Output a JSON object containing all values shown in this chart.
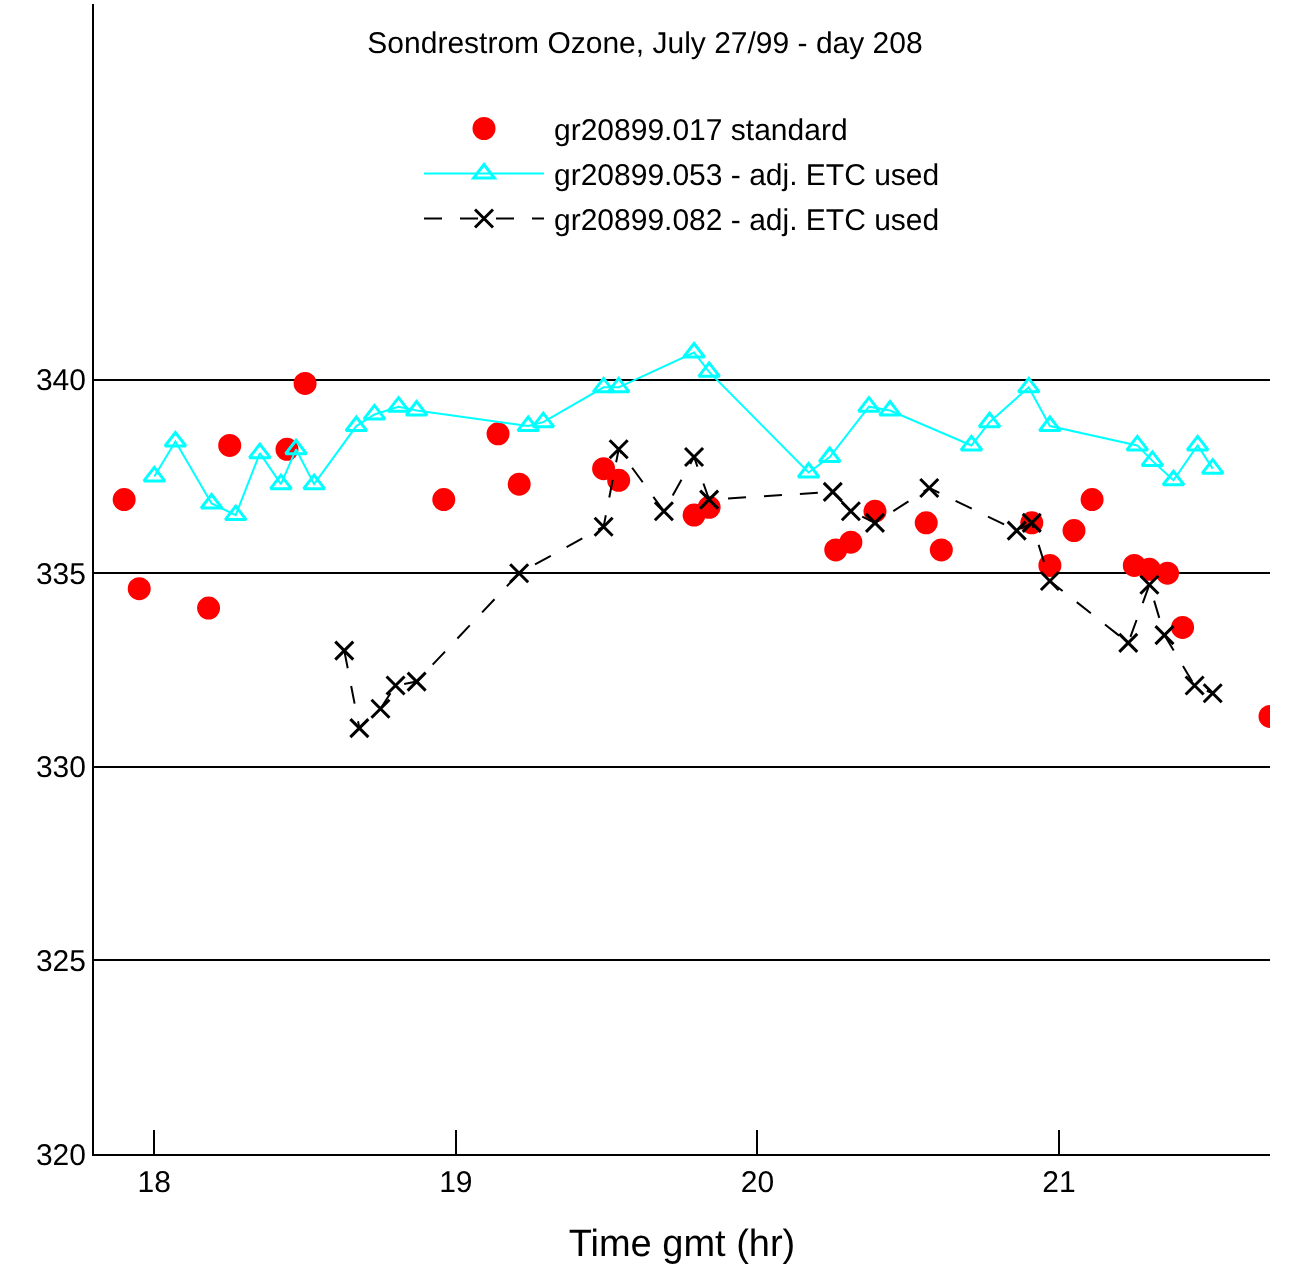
{
  "chart_data": {
    "type": "scatter",
    "title": "Sondrestrom Ozone, July 27/99 - day 208",
    "xlabel": "Time gmt (hr)",
    "xlim": [
      17.8,
      21.7
    ],
    "xticks": [
      18,
      19,
      20,
      21
    ],
    "ylim": [
      320,
      349.7
    ],
    "yticks": [
      320,
      325,
      330,
      335,
      340
    ],
    "grid": "y",
    "legend": "top",
    "series": [
      {
        "name": "gr20899.017 standard",
        "color": "#ff0000",
        "marker": "circle",
        "x": [
          17.9,
          17.95,
          18.18,
          18.25,
          18.44,
          18.5,
          18.96,
          19.14,
          19.21,
          19.49,
          19.54,
          19.79,
          19.84,
          20.26,
          20.31,
          20.39,
          20.56,
          20.61,
          20.91,
          20.97,
          21.05,
          21.11,
          21.25,
          21.3,
          21.36,
          21.41,
          21.7
        ],
        "values": [
          336.9,
          334.6,
          334.1,
          338.3,
          338.2,
          339.9,
          336.9,
          338.6,
          337.3,
          337.7,
          337.4,
          336.5,
          336.7,
          335.6,
          335.8,
          336.6,
          336.3,
          335.6,
          336.3,
          335.2,
          336.1,
          336.9,
          335.2,
          335.1,
          335.0,
          333.6,
          331.3
        ]
      },
      {
        "name": "gr20899.053 - adj. ETC used",
        "type": "line",
        "color": "#00ffff",
        "marker": "triangle",
        "line_style": "solid",
        "x": [
          18.0,
          18.07,
          18.19,
          18.27,
          18.35,
          18.42,
          18.47,
          18.53,
          18.67,
          18.73,
          18.81,
          18.87,
          19.24,
          19.29,
          19.49,
          19.54,
          19.79,
          19.84,
          20.17,
          20.24,
          20.37,
          20.44,
          20.71,
          20.77,
          20.9,
          20.97,
          21.26,
          21.31,
          21.38,
          21.46,
          21.51
        ],
        "values": [
          337.5,
          338.4,
          336.8,
          336.5,
          338.1,
          337.3,
          338.2,
          337.3,
          338.8,
          339.1,
          339.3,
          339.2,
          338.8,
          338.9,
          339.8,
          339.8,
          340.7,
          340.2,
          337.6,
          338.0,
          339.3,
          339.2,
          338.3,
          338.9,
          339.8,
          338.8,
          338.3,
          337.9,
          337.4,
          338.3,
          337.7
        ]
      },
      {
        "name": "gr20899.082 - adj. ETC used",
        "type": "line",
        "color": "#000000",
        "marker": "cross",
        "line_style": "dashed",
        "x": [
          18.63,
          18.68,
          18.75,
          18.8,
          18.87,
          19.21,
          19.49,
          19.54,
          19.69,
          19.79,
          19.84,
          20.25,
          20.31,
          20.39,
          20.57,
          20.86,
          20.91,
          20.97,
          21.23,
          21.3,
          21.35,
          21.45,
          21.51
        ],
        "values": [
          333.0,
          331.0,
          331.5,
          332.1,
          332.2,
          335.0,
          336.2,
          338.2,
          336.6,
          338.0,
          336.9,
          337.1,
          336.6,
          336.3,
          337.2,
          336.1,
          336.3,
          334.8,
          333.2,
          334.7,
          333.4,
          332.1,
          331.9
        ]
      }
    ]
  }
}
